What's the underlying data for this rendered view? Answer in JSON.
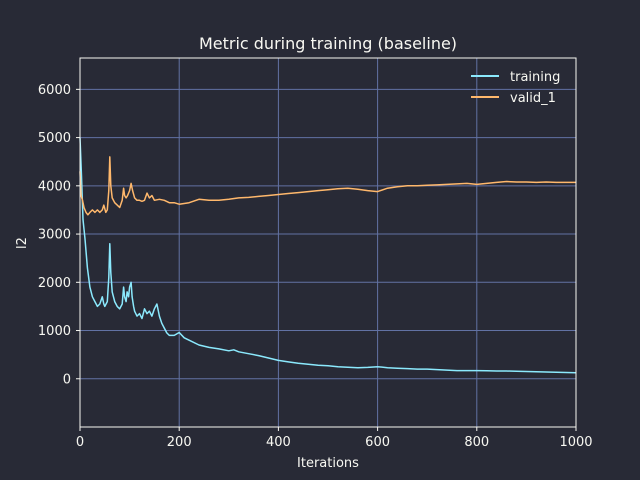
{
  "chart_data": {
    "type": "line",
    "title": "Metric during training (baseline)",
    "xlabel": "Iterations",
    "ylabel": "l2",
    "xlim": [
      0,
      1000
    ],
    "ylim": [
      -1000,
      6650
    ],
    "xticks": [
      0,
      200,
      400,
      600,
      800,
      1000
    ],
    "yticks": [
      0,
      1000,
      2000,
      3000,
      4000,
      5000,
      6000
    ],
    "grid": true,
    "legend_position": "top-right",
    "colors": {
      "background": "#282a36",
      "grid": "#6272a4",
      "text": "#f8f8f2"
    },
    "series": [
      {
        "name": "training",
        "color": "#8be9fd",
        "x": [
          0,
          3,
          6,
          10,
          15,
          20,
          25,
          30,
          35,
          40,
          45,
          48,
          50,
          55,
          58,
          60,
          62,
          65,
          70,
          75,
          80,
          85,
          88,
          90,
          93,
          95,
          98,
          100,
          103,
          105,
          108,
          110,
          115,
          120,
          125,
          130,
          135,
          140,
          145,
          150,
          155,
          160,
          165,
          170,
          175,
          180,
          190,
          200,
          210,
          220,
          240,
          260,
          280,
          300,
          310,
          320,
          340,
          360,
          380,
          400,
          420,
          440,
          460,
          480,
          500,
          520,
          540,
          560,
          580,
          600,
          620,
          640,
          660,
          680,
          700,
          720,
          740,
          760,
          780,
          800,
          820,
          840,
          860,
          880,
          900,
          920,
          940,
          960,
          980,
          1000
        ],
        "values": [
          5000,
          4200,
          3300,
          2900,
          2300,
          1900,
          1700,
          1600,
          1500,
          1550,
          1700,
          1550,
          1500,
          1600,
          2100,
          2800,
          2200,
          1800,
          1600,
          1500,
          1450,
          1550,
          1900,
          1700,
          1600,
          1800,
          1700,
          1900,
          2000,
          1700,
          1500,
          1400,
          1300,
          1350,
          1250,
          1450,
          1350,
          1400,
          1300,
          1450,
          1550,
          1300,
          1150,
          1050,
          950,
          900,
          900,
          960,
          850,
          800,
          700,
          650,
          620,
          580,
          600,
          560,
          520,
          480,
          430,
          380,
          350,
          320,
          300,
          280,
          270,
          250,
          240,
          230,
          235,
          250,
          230,
          220,
          210,
          200,
          200,
          190,
          180,
          170,
          170,
          170,
          165,
          160,
          160,
          155,
          150,
          145,
          140,
          135,
          130,
          125
        ]
      },
      {
        "name": "valid_1",
        "color": "#ffb86c",
        "x": [
          0,
          2,
          5,
          8,
          12,
          16,
          20,
          25,
          30,
          35,
          40,
          45,
          48,
          52,
          55,
          58,
          60,
          62,
          65,
          70,
          75,
          80,
          85,
          88,
          90,
          93,
          96,
          100,
          103,
          106,
          110,
          115,
          120,
          125,
          130,
          135,
          140,
          145,
          150,
          160,
          170,
          180,
          190,
          200,
          220,
          240,
          260,
          280,
          300,
          320,
          340,
          360,
          380,
          400,
          420,
          440,
          460,
          480,
          500,
          520,
          540,
          560,
          580,
          600,
          620,
          640,
          660,
          680,
          700,
          720,
          740,
          760,
          780,
          800,
          820,
          840,
          860,
          880,
          900,
          920,
          940,
          960,
          980,
          1000
        ],
        "values": [
          4300,
          3800,
          3700,
          3550,
          3450,
          3400,
          3450,
          3500,
          3450,
          3500,
          3450,
          3500,
          3600,
          3450,
          3500,
          3900,
          4600,
          4000,
          3750,
          3650,
          3600,
          3550,
          3700,
          3950,
          3800,
          3750,
          3800,
          3900,
          4050,
          3900,
          3750,
          3700,
          3700,
          3680,
          3700,
          3850,
          3750,
          3800,
          3700,
          3720,
          3700,
          3650,
          3650,
          3620,
          3650,
          3720,
          3700,
          3700,
          3720,
          3750,
          3760,
          3780,
          3800,
          3820,
          3840,
          3860,
          3880,
          3900,
          3920,
          3940,
          3950,
          3930,
          3900,
          3880,
          3950,
          3980,
          4000,
          4000,
          4010,
          4020,
          4030,
          4040,
          4050,
          4030,
          4050,
          4070,
          4090,
          4080,
          4080,
          4070,
          4080,
          4070,
          4070,
          4070
        ]
      }
    ]
  }
}
